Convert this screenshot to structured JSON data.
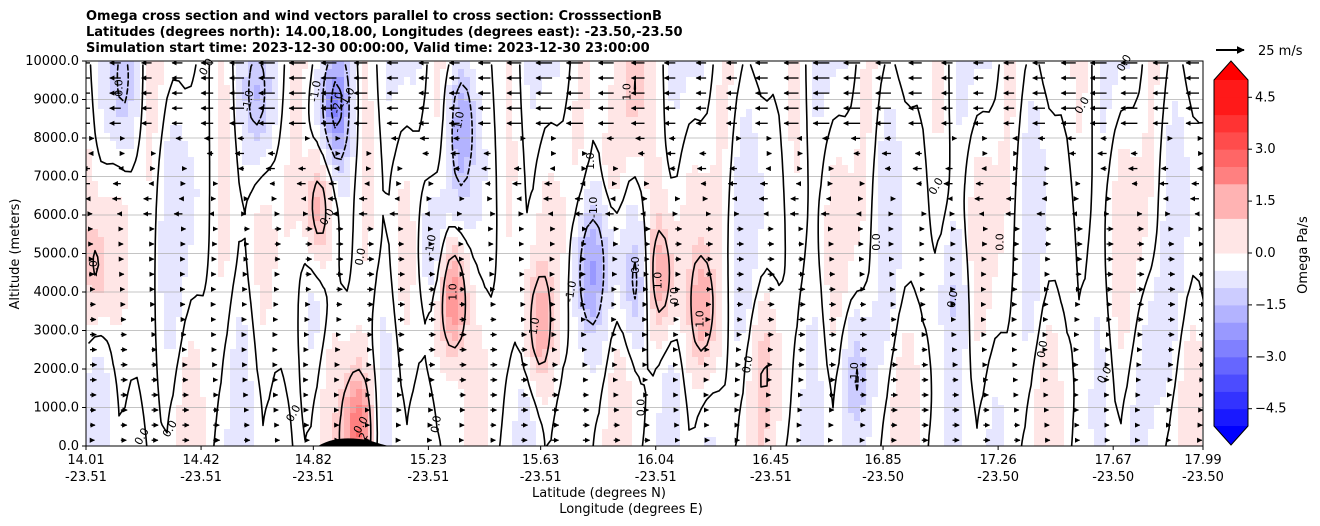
{
  "title_lines": [
    "Omega cross section and wind vectors parallel to cross section: CrosssectionB",
    "Latitudes (degrees north): 14.00,18.00, Longitudes (degrees east): -23.50,-23.50",
    "Simulation start time: 2023-12-30 00:00:00, Valid time: 2023-12-30 23:00:00"
  ],
  "ylabel": "Altitude (meters)",
  "xlabel_lat": "Latitude (degrees N)",
  "xlabel_lon": "Longitude (degrees E)",
  "colorbar_label": "Omega Pa/s",
  "quiver_key_label": "25 m/s",
  "colors": {
    "positive": "#ff0000",
    "negative": "#0000ff",
    "neutral": "#ffffff",
    "contour": "#000000",
    "grid": "#b0b0b0"
  },
  "chart_data": {
    "type": "heatmap",
    "colormap": "bwr",
    "ylim": [
      0,
      10000
    ],
    "yticks": [
      "0.0",
      "1000.0",
      "2000.0",
      "3000.0",
      "4000.0",
      "5000.0",
      "6000.0",
      "7000.0",
      "8000.0",
      "9000.0",
      "10000.0"
    ],
    "xticks": [
      {
        "lat": "14.01",
        "lon": "-23.51"
      },
      {
        "lat": "14.42",
        "lon": "-23.51"
      },
      {
        "lat": "14.82",
        "lon": "-23.51"
      },
      {
        "lat": "15.23",
        "lon": "-23.51"
      },
      {
        "lat": "15.63",
        "lon": "-23.51"
      },
      {
        "lat": "16.04",
        "lon": "-23.51"
      },
      {
        "lat": "16.45",
        "lon": "-23.51"
      },
      {
        "lat": "16.85",
        "lon": "-23.50"
      },
      {
        "lat": "17.26",
        "lon": "-23.50"
      },
      {
        "lat": "17.67",
        "lon": "-23.50"
      },
      {
        "lat": "17.99",
        "lon": "-23.50"
      }
    ],
    "colorbar_range": [
      -5.0,
      5.0
    ],
    "colorbar_ticks": [
      "4.5",
      "3.0",
      "1.5",
      "0.0",
      "−1.5",
      "−3.0",
      "−4.5"
    ],
    "contour_labels": [
      "0.0",
      "1.0",
      "-1.0",
      "-2.0",
      "2"
    ],
    "grid": "horizontal",
    "features": [
      {
        "lat": 14.62,
        "alt": 8950,
        "omega": -1.1
      },
      {
        "lat": 14.14,
        "alt": 9300,
        "omega": -0.9
      },
      {
        "lat": 14.9,
        "alt": 8900,
        "omega": -2.3
      },
      {
        "lat": 15.35,
        "alt": 8400,
        "omega": -1.4
      },
      {
        "lat": 14.84,
        "alt": 6200,
        "omega": 2.0
      },
      {
        "lat": 14.05,
        "alt": 4600,
        "omega": 1.1
      },
      {
        "lat": 15.32,
        "alt": 3900,
        "omega": 2.6
      },
      {
        "lat": 15.62,
        "alt": 3100,
        "omega": 1.6
      },
      {
        "lat": 15.8,
        "alt": 4500,
        "omega": -1.6
      },
      {
        "lat": 15.97,
        "alt": 4200,
        "omega": -1.1
      },
      {
        "lat": 16.06,
        "alt": 4400,
        "omega": 1.6
      },
      {
        "lat": 16.21,
        "alt": 3500,
        "omega": 1.4
      },
      {
        "lat": 15.96,
        "alt": 9300,
        "omega": 1.0
      },
      {
        "lat": 15.88,
        "alt": 7400,
        "omega": 0.9
      },
      {
        "lat": 16.76,
        "alt": 1900,
        "omega": -0.9
      },
      {
        "lat": 17.1,
        "alt": 4000,
        "omega": -0.6
      },
      {
        "lat": 15.25,
        "alt": 5200,
        "omega": -1.0
      },
      {
        "lat": 14.98,
        "alt": 300,
        "omega": 2.8
      },
      {
        "lat": 16.43,
        "alt": 2200,
        "omega": 0.6
      },
      {
        "lat": 17.82,
        "alt": 2800,
        "omega": -0.5
      }
    ],
    "wind_vectors": {
      "upper_level": "westward (~10-15 m/s) above 8000 m",
      "lower_level": "eastward (~3-6 m/s) below 6000 m",
      "reference": "25 m/s"
    }
  }
}
